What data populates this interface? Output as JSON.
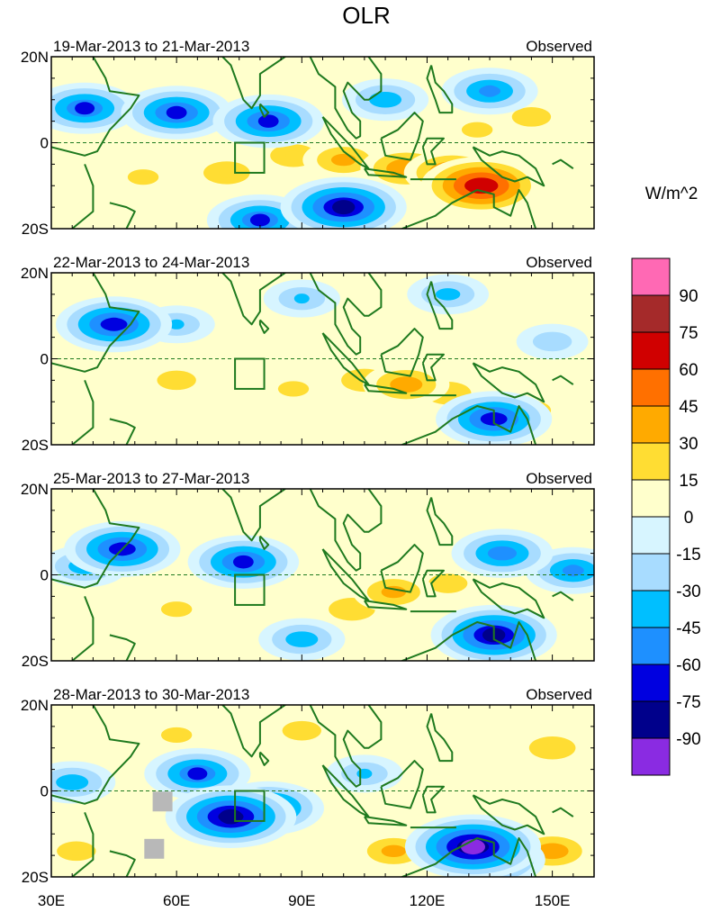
{
  "chart_data": {
    "type": "heatmap",
    "title": "OLR",
    "units": "W/m^2",
    "x_ticks": [
      "30E",
      "60E",
      "90E",
      "120E",
      "150E"
    ],
    "x_tick_values": [
      30,
      60,
      90,
      120,
      150
    ],
    "xlim": [
      30,
      160
    ],
    "ylim": [
      -20,
      20
    ],
    "y_ticks": [
      "20N",
      "0",
      "20S"
    ],
    "y_tick_values": [
      20,
      0,
      -20
    ],
    "colorbar": {
      "labels": [
        "90",
        "75",
        "60",
        "45",
        "30",
        "15",
        "0",
        "-15",
        "-30",
        "-45",
        "-60",
        "-75",
        "-90"
      ],
      "colors": [
        "#ff69b4",
        "#a52a2a",
        "#d00000",
        "#ff7000",
        "#ffaa00",
        "#ffdd33",
        "#ffffcc",
        "#d7f5ff",
        "#a8dcff",
        "#00bfff",
        "#1e90ff",
        "#0000e0",
        "#00008b",
        "#8a2be2"
      ]
    },
    "panels": [
      {
        "period": "19-Mar-2013 to 21-Mar-2013",
        "source": "Observed",
        "anomalies": [
          {
            "lon": 133,
            "lat": -10,
            "value": 75
          },
          {
            "lon": 126,
            "lat": -7,
            "value": 50
          },
          {
            "lon": 115,
            "lat": -6,
            "value": 45
          },
          {
            "lon": 100,
            "lat": -4,
            "value": 35
          },
          {
            "lon": 88,
            "lat": -3,
            "value": 30
          },
          {
            "lon": 72,
            "lat": -7,
            "value": 30
          },
          {
            "lon": 52,
            "lat": -8,
            "value": 20
          },
          {
            "lon": 145,
            "lat": 6,
            "value": 25
          },
          {
            "lon": 132,
            "lat": 3,
            "value": 20
          },
          {
            "lon": 100,
            "lat": -15,
            "value": -80
          },
          {
            "lon": 60,
            "lat": 7,
            "value": -65
          },
          {
            "lon": 82,
            "lat": 5,
            "value": -65
          },
          {
            "lon": 110,
            "lat": 10,
            "value": -40
          },
          {
            "lon": 38,
            "lat": 8,
            "value": -60
          },
          {
            "lon": 135,
            "lat": 12,
            "value": -50
          },
          {
            "lon": 80,
            "lat": -18,
            "value": -60
          }
        ]
      },
      {
        "period": "22-Mar-2013 to 24-Mar-2013",
        "source": "Observed",
        "anomalies": [
          {
            "lon": 115,
            "lat": -6,
            "value": 40
          },
          {
            "lon": 105,
            "lat": -5,
            "value": 30
          },
          {
            "lon": 125,
            "lat": -8,
            "value": 30
          },
          {
            "lon": 60,
            "lat": -5,
            "value": 25
          },
          {
            "lon": 88,
            "lat": -7,
            "value": 20
          },
          {
            "lon": 145,
            "lat": -12,
            "value": 25
          },
          {
            "lon": 136,
            "lat": -14,
            "value": -70
          },
          {
            "lon": 45,
            "lat": 8,
            "value": -70
          },
          {
            "lon": 60,
            "lat": 8,
            "value": -30
          },
          {
            "lon": 90,
            "lat": 14,
            "value": -30
          },
          {
            "lon": 125,
            "lat": 15,
            "value": -35
          },
          {
            "lon": 150,
            "lat": 4,
            "value": -25
          }
        ]
      },
      {
        "period": "25-Mar-2013 to 27-Mar-2013",
        "source": "Observed",
        "anomalies": [
          {
            "lon": 112,
            "lat": -4,
            "value": 35
          },
          {
            "lon": 102,
            "lat": -8,
            "value": 30
          },
          {
            "lon": 125,
            "lat": -2,
            "value": 25
          },
          {
            "lon": 60,
            "lat": -8,
            "value": 20
          },
          {
            "lon": 100,
            "lat": 10,
            "value": 15
          },
          {
            "lon": 136,
            "lat": -14,
            "value": -80
          },
          {
            "lon": 47,
            "lat": 6,
            "value": -70
          },
          {
            "lon": 76,
            "lat": 3,
            "value": -65
          },
          {
            "lon": 38,
            "lat": 2,
            "value": -40
          },
          {
            "lon": 90,
            "lat": -15,
            "value": -40
          },
          {
            "lon": 155,
            "lat": 1,
            "value": -50
          },
          {
            "lon": 138,
            "lat": 5,
            "value": -55
          }
        ]
      },
      {
        "period": "28-Mar-2013 to 30-Mar-2013",
        "source": "Observed",
        "anomalies": [
          {
            "lon": 73,
            "lat": -6,
            "value": -85
          },
          {
            "lon": 82,
            "lat": -4,
            "value": -65
          },
          {
            "lon": 131,
            "lat": -13,
            "value": -90
          },
          {
            "lon": 135,
            "lat": -16,
            "value": -65
          },
          {
            "lon": 65,
            "lat": 4,
            "value": -60
          },
          {
            "lon": 35,
            "lat": 2,
            "value": -40
          },
          {
            "lon": 105,
            "lat": 4,
            "value": -30
          },
          {
            "lon": 150,
            "lat": -14,
            "value": 40
          },
          {
            "lon": 112,
            "lat": -14,
            "value": 35
          },
          {
            "lon": 150,
            "lat": 10,
            "value": 30
          },
          {
            "lon": 90,
            "lat": 14,
            "value": 25
          },
          {
            "lon": 60,
            "lat": 13,
            "value": 20
          },
          {
            "lon": 36,
            "lat": -14,
            "value": 25
          }
        ]
      }
    ]
  }
}
